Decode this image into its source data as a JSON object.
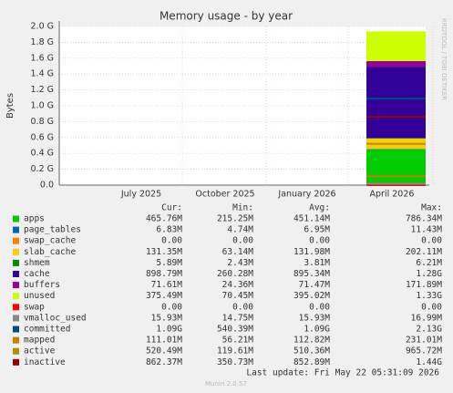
{
  "chart_data": {
    "type": "area",
    "title": "Memory usage - by year",
    "y_label": "Bytes",
    "side_text": "RRDTOOL / TOBI OETIKER",
    "categories": [
      "July 2025",
      "October 2025",
      "January 2026",
      "April 2026"
    ],
    "ylim": [
      0,
      2.0
    ],
    "yticks": [
      {
        "value": 0,
        "label": "0.0"
      },
      {
        "value": 0.2,
        "label": "0.2 G"
      },
      {
        "value": 0.4,
        "label": "0.4 G"
      },
      {
        "value": 0.6,
        "label": "0.6 G"
      },
      {
        "value": 0.8,
        "label": "0.8 G"
      },
      {
        "value": 1.0,
        "label": "1.0 G"
      },
      {
        "value": 1.2,
        "label": "1.2 G"
      },
      {
        "value": 1.4,
        "label": "1.4 G"
      },
      {
        "value": 1.6,
        "label": "1.6 G"
      },
      {
        "value": 1.8,
        "label": "1.8 G"
      },
      {
        "value": 2.0,
        "label": "2.0 G"
      }
    ],
    "grid": true,
    "series": [
      {
        "name": "apps",
        "color": "#00cc00",
        "style": "area",
        "values": [
          null,
          null,
          null,
          0.45
        ]
      },
      {
        "name": "page_tables",
        "color": "#0066b3",
        "style": "area",
        "values": [
          null,
          null,
          null,
          0.007
        ]
      },
      {
        "name": "swap_cache",
        "color": "#ff8000",
        "style": "area",
        "values": [
          null,
          null,
          null,
          0
        ]
      },
      {
        "name": "slab_cache",
        "color": "#ffcc00",
        "style": "area",
        "values": [
          null,
          null,
          null,
          0.13
        ]
      },
      {
        "name": "shmem",
        "color": "#008f00",
        "style": "area",
        "values": [
          null,
          null,
          null,
          0.006
        ]
      },
      {
        "name": "cache",
        "color": "#330099",
        "style": "area",
        "values": [
          null,
          null,
          null,
          0.9
        ]
      },
      {
        "name": "buffers",
        "color": "#990099",
        "style": "area",
        "values": [
          null,
          null,
          null,
          0.07
        ]
      },
      {
        "name": "unused",
        "color": "#ccff00",
        "style": "area",
        "values": [
          null,
          null,
          null,
          0.375
        ]
      },
      {
        "name": "swap",
        "color": "#ff0000",
        "style": "line",
        "values": [
          null,
          null,
          null,
          0
        ]
      },
      {
        "name": "vmalloc_used",
        "color": "#888888",
        "style": "line",
        "values": [
          null,
          null,
          null,
          0.016
        ]
      },
      {
        "name": "committed",
        "color": "#004d80",
        "style": "line",
        "values": [
          null,
          null,
          null,
          1.09
        ]
      },
      {
        "name": "mapped",
        "color": "#cc7a00",
        "style": "line",
        "values": [
          null,
          null,
          null,
          0.11
        ]
      },
      {
        "name": "active",
        "color": "#b38f00",
        "style": "line",
        "values": [
          null,
          null,
          null,
          0.52
        ]
      },
      {
        "name": "inactive",
        "color": "#990000",
        "style": "line",
        "values": [
          null,
          null,
          null,
          0.86
        ]
      }
    ],
    "legend_table": {
      "headers": [
        "Cur:",
        "Min:",
        "Avg:",
        "Max:"
      ],
      "rows": [
        [
          "465.76M",
          "215.25M",
          "451.14M",
          "786.34M"
        ],
        [
          "6.83M",
          "4.74M",
          "6.95M",
          "11.43M"
        ],
        [
          "0.00",
          "0.00",
          "0.00",
          "0.00"
        ],
        [
          "131.35M",
          "63.14M",
          "131.98M",
          "202.11M"
        ],
        [
          "5.89M",
          "2.43M",
          "3.81M",
          "6.21M"
        ],
        [
          "898.79M",
          "260.28M",
          "895.34M",
          "1.28G"
        ],
        [
          "71.61M",
          "24.36M",
          "71.47M",
          "171.89M"
        ],
        [
          "375.49M",
          "70.45M",
          "395.02M",
          "1.33G"
        ],
        [
          "0.00",
          "0.00",
          "0.00",
          "0.00"
        ],
        [
          "15.93M",
          "14.75M",
          "15.93M",
          "16.99M"
        ],
        [
          "1.09G",
          "540.39M",
          "1.09G",
          "2.13G"
        ],
        [
          "111.01M",
          "56.21M",
          "112.82M",
          "231.01M"
        ],
        [
          "520.49M",
          "119.61M",
          "510.36M",
          "965.72M"
        ],
        [
          "862.37M",
          "350.73M",
          "852.89M",
          "1.44G"
        ]
      ]
    },
    "last_update": "Last update: Fri May 22 05:31:09 2026",
    "version": "Munin 2.0.57"
  }
}
